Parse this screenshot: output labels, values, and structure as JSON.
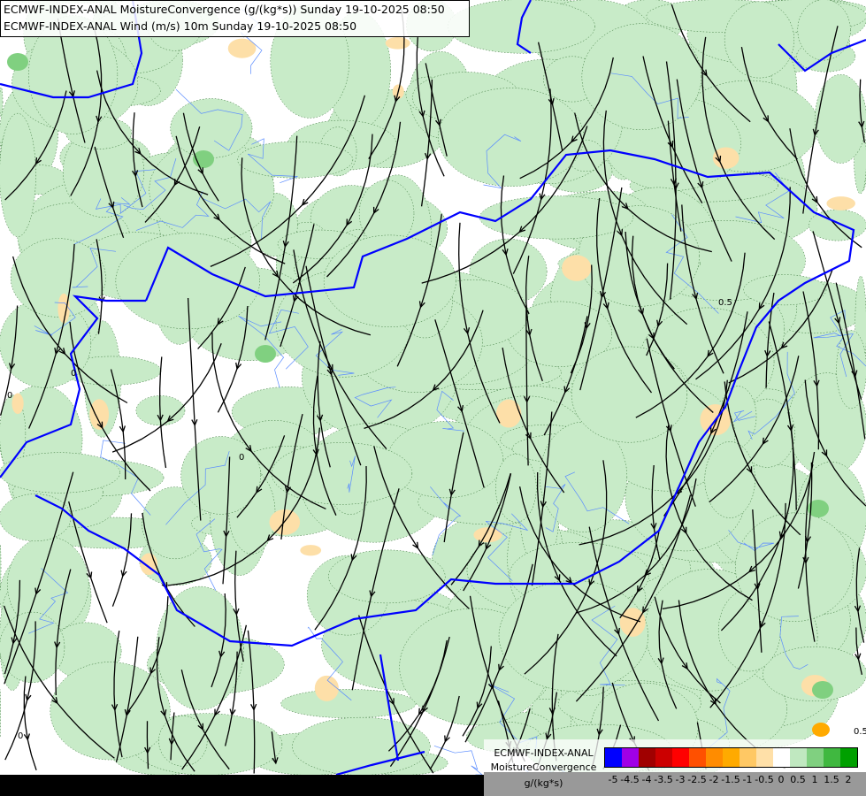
{
  "header": {
    "line1": "ECMWF-INDEX-ANAL MoistureConvergence (g/(kg*s)) Sunday 19-10-2025 08:50",
    "line2": "ECMWF-INDEX-ANAL Wind (m/s) 10m Sunday 19-10-2025 08:50"
  },
  "map": {
    "contour_labels": [
      "0",
      "0",
      "0",
      "0",
      "0.5",
      "0.5"
    ],
    "colors": {
      "border": "#0000ff",
      "river": "#5a8cff",
      "streamline": "#000000",
      "convergence": "#c8ebc8",
      "divergence": "#fddfa8"
    }
  },
  "legend": {
    "title1": "ECMWF-INDEX-ANAL",
    "title2": "MoistureConvergence",
    "unit": "g/(kg*s)",
    "colors": [
      "#0000ff",
      "#a000e6",
      "#a00000",
      "#cc0000",
      "#ff0000",
      "#ff5000",
      "#ff8c00",
      "#ffaa00",
      "#ffc864",
      "#ffe0a8",
      "#ffffff",
      "#c0e8c0",
      "#80d080",
      "#40b840",
      "#00a000"
    ],
    "ticks": [
      "-5",
      "-4.5",
      "-4",
      "-3.5",
      "-3",
      "-2.5",
      "-2",
      "-1.5",
      "-1",
      "-0.5",
      "0",
      "0.5",
      "1",
      "1.5",
      "2"
    ]
  }
}
